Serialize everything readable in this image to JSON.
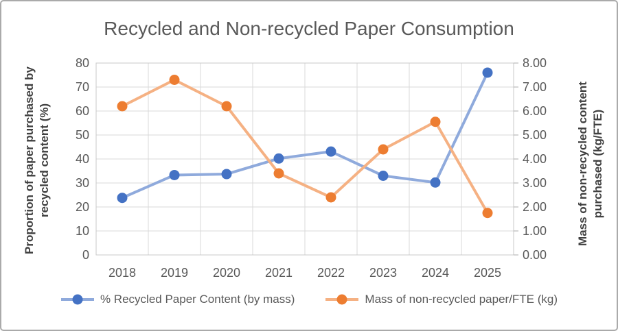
{
  "title": "Recycled and Non-recycled Paper Consumption",
  "chart_data": {
    "type": "line",
    "title": "Recycled and Non-recycled Paper Consumption",
    "categories": [
      "2018",
      "2019",
      "2020",
      "2021",
      "2022",
      "2023",
      "2024",
      "2025"
    ],
    "series": [
      {
        "name": "% Recycled Paper Content (by mass)",
        "axis": "left",
        "values": [
          23.8,
          33.3,
          33.7,
          40.2,
          43.1,
          33.0,
          30.2,
          76.0
        ],
        "marker_color": "#4472C4",
        "line_color": "#8FAADC"
      },
      {
        "name": "Mass of non-recycled paper/FTE (kg)",
        "axis": "right",
        "values": [
          6.2,
          7.3,
          6.2,
          3.4,
          2.4,
          4.4,
          5.55,
          1.75
        ],
        "marker_color": "#ED7D31",
        "line_color": "#F5B183"
      }
    ],
    "left_axis": {
      "label": "Proportion of paper purchased by recycled content (%)",
      "label_lines": [
        "Proportion of paper purchased by",
        "recycled content (%)"
      ],
      "min": 0,
      "max": 80,
      "tick_step": 10,
      "tick_labels": [
        "0",
        "10",
        "20",
        "30",
        "40",
        "50",
        "60",
        "70",
        "80"
      ]
    },
    "right_axis": {
      "label": "Mass of non-recycled content purchased (kg/FTE)",
      "label_lines": [
        "Mass of non-recycled content",
        "purchased (kg/FTE)"
      ],
      "min": 0,
      "max": 8,
      "tick_step": 1,
      "tick_labels": [
        "0.00",
        "1.00",
        "2.00",
        "3.00",
        "4.00",
        "5.00",
        "6.00",
        "7.00",
        "8.00"
      ]
    },
    "grid": true,
    "legend_position": "bottom"
  },
  "colors": {
    "gridline": "#D9D9D9",
    "plot_border": "#C8C8C8",
    "tick_mark": "#ABABAB",
    "title_text": "#595959",
    "axis_text": "#595959",
    "axis_title_text": "#404040"
  }
}
